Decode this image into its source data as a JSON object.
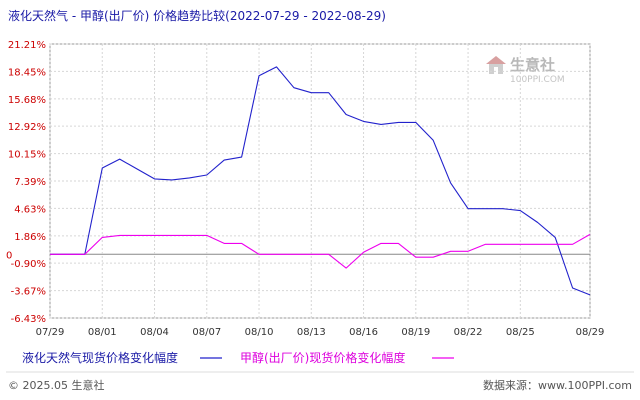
{
  "chart_data": {
    "type": "line",
    "title": "液化天然气 - 甲醇(出厂价) 价格趋势比较(2022-07-29 - 2022-08-29)",
    "x": [
      "07/29",
      "07/30",
      "07/31",
      "08/01",
      "08/02",
      "08/03",
      "08/04",
      "08/05",
      "08/06",
      "08/07",
      "08/08",
      "08/09",
      "08/10",
      "08/11",
      "08/12",
      "08/13",
      "08/14",
      "08/15",
      "08/16",
      "08/17",
      "08/18",
      "08/19",
      "08/20",
      "08/21",
      "08/22",
      "08/23",
      "08/24",
      "08/25",
      "08/26",
      "08/27",
      "08/28",
      "08/29"
    ],
    "x_tick_labels": [
      "07/29",
      "08/01",
      "08/04",
      "08/07",
      "08/10",
      "08/13",
      "08/16",
      "08/19",
      "08/22",
      "08/25",
      "08/29"
    ],
    "y_tick_labels": [
      "21.21%",
      "18.45%",
      "15.68%",
      "12.92%",
      "10.15%",
      "7.39%",
      "4.63%",
      "1.86%",
      "-0.90%",
      "-3.67%",
      "-6.43%"
    ],
    "y_zero_label": "0",
    "ylim": [
      -6.43,
      21.21
    ],
    "xlabel": "",
    "ylabel": "",
    "grid": true,
    "legend_position": "bottom",
    "series": [
      {
        "name": "液化天然气现货价格变化幅度",
        "color": "#2222cc",
        "values": [
          0,
          0,
          0,
          8.7,
          9.6,
          8.6,
          7.6,
          7.5,
          7.7,
          8.0,
          9.5,
          9.8,
          18.0,
          18.9,
          16.8,
          16.3,
          16.3,
          14.1,
          13.4,
          13.1,
          13.3,
          13.3,
          11.5,
          7.2,
          4.6,
          4.6,
          4.6,
          4.4,
          3.2,
          1.7,
          -3.4,
          -4.1
        ]
      },
      {
        "name": "甲醇(出厂价)现货价格变化幅度",
        "color": "#ee00ee",
        "values": [
          0,
          0,
          0,
          1.7,
          1.9,
          1.9,
          1.9,
          1.9,
          1.9,
          1.9,
          1.1,
          1.1,
          0,
          0,
          0,
          0,
          0,
          -1.4,
          0.2,
          1.1,
          1.1,
          -0.3,
          -0.3,
          0.3,
          0.3,
          1.0,
          1.0,
          1.0,
          1.0,
          1.0,
          1.0,
          2.0
        ]
      }
    ]
  },
  "footer": {
    "copyright": "© 2025.05 生意社",
    "website": "数据来源：www.100PPI.com"
  },
  "watermark": {
    "text": "生意社",
    "sub": "100PPI.COM"
  }
}
